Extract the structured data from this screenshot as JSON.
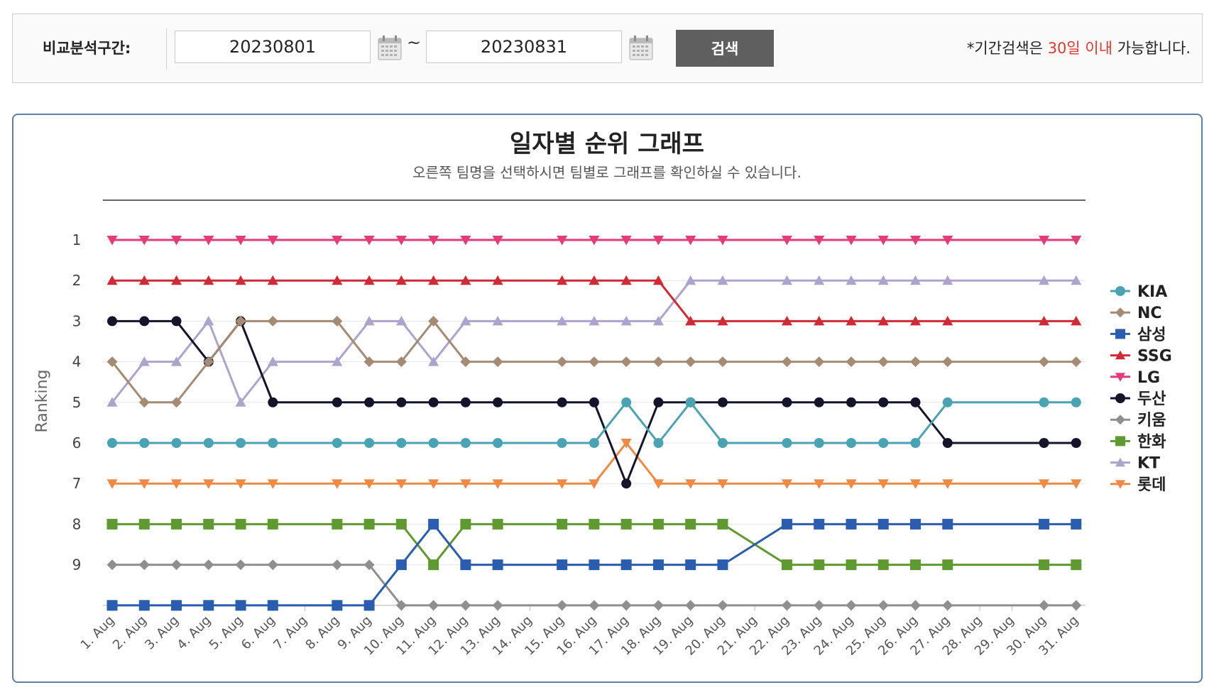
{
  "search": {
    "label": "비교분석구간:",
    "start_date": "20230801",
    "end_date": "20230831",
    "tilde": "~",
    "button_label": "검색",
    "notice_prefix": "*기간검색은 ",
    "notice_highlight": "30일 이내",
    "notice_suffix": " 가능합니다.",
    "highlight_color": "#e8372e"
  },
  "chart_header": {
    "title": "일자별 순위 그래프",
    "subtitle": "오른쪽 팀명을 선택하시면 팀별로 그래프를 확인하실 수 있습니다."
  },
  "chart_data": {
    "type": "line",
    "ylabel": "Ranking",
    "xlabel": "",
    "y_ticks": [
      1,
      2,
      3,
      4,
      5,
      6,
      7,
      8,
      9
    ],
    "ylim": [
      1,
      10
    ],
    "y_reversed": true,
    "grid": true,
    "legend_position": "right",
    "categories": [
      "1. Aug",
      "2. Aug",
      "3. Aug",
      "4. Aug",
      "5. Aug",
      "6. Aug",
      "7. Aug",
      "8. Aug",
      "9. Aug",
      "10. Aug",
      "11. Aug",
      "12. Aug",
      "13. Aug",
      "14. Aug",
      "15. Aug",
      "16. Aug",
      "17. Aug",
      "18. Aug",
      "19. Aug",
      "20. Aug",
      "21. Aug",
      "22. Aug",
      "23. Aug",
      "24. Aug",
      "25. Aug",
      "26. Aug",
      "27. Aug",
      "28. Aug",
      "29. Aug",
      "30. Aug",
      "31. Aug"
    ],
    "series": [
      {
        "name": "KIA",
        "color": "#4aa3b3",
        "marker": "circle",
        "values": [
          6,
          6,
          6,
          6,
          6,
          6,
          null,
          6,
          6,
          6,
          6,
          6,
          6,
          null,
          6,
          6,
          5,
          6,
          5,
          6,
          null,
          6,
          6,
          6,
          6,
          6,
          5,
          null,
          null,
          5,
          5
        ]
      },
      {
        "name": "NC",
        "color": "#a68b74",
        "marker": "diamond",
        "values": [
          4,
          5,
          5,
          4,
          3,
          3,
          null,
          3,
          4,
          4,
          3,
          4,
          4,
          null,
          4,
          4,
          4,
          4,
          4,
          4,
          null,
          4,
          4,
          4,
          4,
          4,
          4,
          null,
          null,
          4,
          4
        ]
      },
      {
        "name": "삼성",
        "color": "#2a5cb0",
        "marker": "square",
        "values": [
          10,
          10,
          10,
          10,
          10,
          10,
          null,
          10,
          10,
          9,
          8,
          9,
          9,
          null,
          9,
          9,
          9,
          9,
          9,
          9,
          null,
          8,
          8,
          8,
          8,
          8,
          8,
          null,
          null,
          8,
          8
        ]
      },
      {
        "name": "SSG",
        "color": "#cf2a36",
        "marker": "triangle-up",
        "values": [
          2,
          2,
          2,
          2,
          2,
          2,
          null,
          2,
          2,
          2,
          2,
          2,
          2,
          null,
          2,
          2,
          2,
          2,
          3,
          3,
          null,
          3,
          3,
          3,
          3,
          3,
          3,
          null,
          null,
          3,
          3
        ]
      },
      {
        "name": "LG",
        "color": "#e23c7a",
        "marker": "triangle-down",
        "values": [
          1,
          1,
          1,
          1,
          1,
          1,
          null,
          1,
          1,
          1,
          1,
          1,
          1,
          null,
          1,
          1,
          1,
          1,
          1,
          1,
          null,
          1,
          1,
          1,
          1,
          1,
          1,
          null,
          null,
          1,
          1
        ]
      },
      {
        "name": "두산",
        "color": "#14142b",
        "marker": "circle",
        "values": [
          3,
          3,
          3,
          4,
          3,
          5,
          null,
          5,
          5,
          5,
          5,
          5,
          5,
          null,
          5,
          5,
          7,
          5,
          5,
          5,
          null,
          5,
          5,
          5,
          5,
          5,
          6,
          null,
          null,
          6,
          6
        ]
      },
      {
        "name": "키움",
        "color": "#8f8f8f",
        "marker": "diamond",
        "values": [
          9,
          9,
          9,
          9,
          9,
          9,
          null,
          9,
          9,
          10,
          10,
          10,
          10,
          null,
          10,
          10,
          10,
          10,
          10,
          10,
          null,
          10,
          10,
          10,
          10,
          10,
          10,
          null,
          null,
          10,
          10
        ]
      },
      {
        "name": "한화",
        "color": "#5e9a2f",
        "marker": "square",
        "values": [
          8,
          8,
          8,
          8,
          8,
          8,
          null,
          8,
          8,
          8,
          9,
          8,
          8,
          null,
          8,
          8,
          8,
          8,
          8,
          8,
          null,
          9,
          9,
          9,
          9,
          9,
          9,
          null,
          null,
          9,
          9
        ]
      },
      {
        "name": "KT",
        "color": "#aea3cd",
        "marker": "triangle-up",
        "values": [
          5,
          4,
          4,
          3,
          5,
          4,
          null,
          4,
          3,
          3,
          4,
          3,
          3,
          null,
          3,
          3,
          3,
          3,
          2,
          2,
          null,
          2,
          2,
          2,
          2,
          2,
          2,
          null,
          null,
          2,
          2
        ]
      },
      {
        "name": "롯데",
        "color": "#ee8a44",
        "marker": "triangle-down",
        "values": [
          7,
          7,
          7,
          7,
          7,
          7,
          null,
          7,
          7,
          7,
          7,
          7,
          7,
          null,
          7,
          7,
          6,
          7,
          7,
          7,
          null,
          7,
          7,
          7,
          7,
          7,
          7,
          null,
          null,
          7,
          7
        ]
      }
    ]
  }
}
